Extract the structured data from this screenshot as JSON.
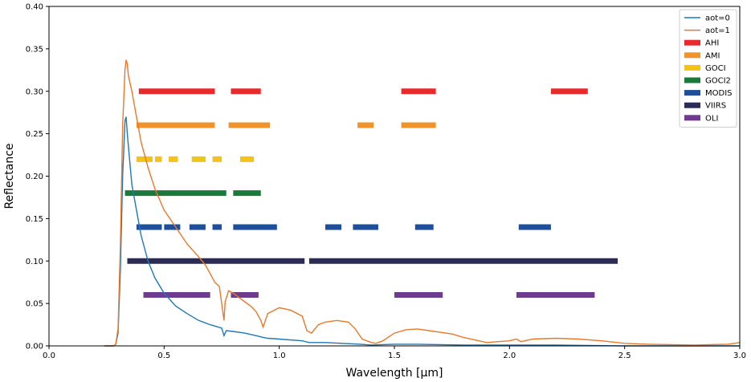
{
  "chart_data": {
    "type": "line",
    "title": "",
    "xlabel": "Wavelength [µm]",
    "ylabel": "Reflectance",
    "xlim": [
      0.0,
      3.0
    ],
    "ylim": [
      0.0,
      0.4
    ],
    "xticks": [
      "0.0",
      "0.5",
      "1.0",
      "1.5",
      "2.0",
      "2.5",
      "3.0"
    ],
    "yticks": [
      "0.00",
      "0.05",
      "0.10",
      "0.15",
      "0.20",
      "0.25",
      "0.30",
      "0.35",
      "0.40"
    ],
    "grid": false,
    "legend_position": "top-right",
    "lines": [
      {
        "name": "aot=0",
        "color": "#1f77b4",
        "points": [
          [
            0.24,
            0.0
          ],
          [
            0.28,
            0.0
          ],
          [
            0.29,
            0.002
          ],
          [
            0.3,
            0.015
          ],
          [
            0.31,
            0.09
          ],
          [
            0.32,
            0.2
          ],
          [
            0.33,
            0.265
          ],
          [
            0.335,
            0.27
          ],
          [
            0.34,
            0.25
          ],
          [
            0.35,
            0.22
          ],
          [
            0.36,
            0.19
          ],
          [
            0.38,
            0.16
          ],
          [
            0.4,
            0.13
          ],
          [
            0.43,
            0.1
          ],
          [
            0.46,
            0.08
          ],
          [
            0.5,
            0.062
          ],
          [
            0.55,
            0.047
          ],
          [
            0.6,
            0.038
          ],
          [
            0.65,
            0.03
          ],
          [
            0.7,
            0.025
          ],
          [
            0.75,
            0.021
          ],
          [
            0.76,
            0.012
          ],
          [
            0.77,
            0.018
          ],
          [
            0.8,
            0.017
          ],
          [
            0.85,
            0.015
          ],
          [
            0.9,
            0.012
          ],
          [
            0.93,
            0.01
          ],
          [
            0.95,
            0.009
          ],
          [
            1.0,
            0.008
          ],
          [
            1.1,
            0.006
          ],
          [
            1.13,
            0.004
          ],
          [
            1.2,
            0.004
          ],
          [
            1.35,
            0.002
          ],
          [
            1.4,
            0.001
          ],
          [
            1.5,
            0.002
          ],
          [
            1.6,
            0.002
          ],
          [
            1.8,
            0.001
          ],
          [
            2.0,
            0.001
          ],
          [
            2.2,
            0.001
          ],
          [
            2.5,
            0.0
          ],
          [
            3.0,
            0.0
          ]
        ]
      },
      {
        "name": "aot=1",
        "color": "#e8792c",
        "points": [
          [
            0.24,
            0.0
          ],
          [
            0.28,
            0.0
          ],
          [
            0.29,
            0.002
          ],
          [
            0.3,
            0.02
          ],
          [
            0.31,
            0.12
          ],
          [
            0.32,
            0.26
          ],
          [
            0.33,
            0.325
          ],
          [
            0.335,
            0.337
          ],
          [
            0.34,
            0.332
          ],
          [
            0.345,
            0.318
          ],
          [
            0.36,
            0.3
          ],
          [
            0.38,
            0.27
          ],
          [
            0.4,
            0.24
          ],
          [
            0.43,
            0.21
          ],
          [
            0.46,
            0.185
          ],
          [
            0.5,
            0.16
          ],
          [
            0.55,
            0.14
          ],
          [
            0.6,
            0.12
          ],
          [
            0.65,
            0.105
          ],
          [
            0.68,
            0.095
          ],
          [
            0.7,
            0.085
          ],
          [
            0.72,
            0.075
          ],
          [
            0.74,
            0.07
          ],
          [
            0.76,
            0.03
          ],
          [
            0.765,
            0.052
          ],
          [
            0.78,
            0.065
          ],
          [
            0.8,
            0.062
          ],
          [
            0.82,
            0.058
          ],
          [
            0.85,
            0.052
          ],
          [
            0.88,
            0.046
          ],
          [
            0.9,
            0.04
          ],
          [
            0.92,
            0.03
          ],
          [
            0.93,
            0.022
          ],
          [
            0.95,
            0.038
          ],
          [
            1.0,
            0.045
          ],
          [
            1.05,
            0.042
          ],
          [
            1.1,
            0.035
          ],
          [
            1.12,
            0.018
          ],
          [
            1.14,
            0.015
          ],
          [
            1.17,
            0.025
          ],
          [
            1.2,
            0.028
          ],
          [
            1.25,
            0.03
          ],
          [
            1.3,
            0.028
          ],
          [
            1.33,
            0.02
          ],
          [
            1.36,
            0.008
          ],
          [
            1.4,
            0.004
          ],
          [
            1.42,
            0.003
          ],
          [
            1.45,
            0.006
          ],
          [
            1.5,
            0.015
          ],
          [
            1.55,
            0.019
          ],
          [
            1.6,
            0.02
          ],
          [
            1.65,
            0.018
          ],
          [
            1.7,
            0.016
          ],
          [
            1.75,
            0.014
          ],
          [
            1.8,
            0.01
          ],
          [
            1.85,
            0.007
          ],
          [
            1.9,
            0.004
          ],
          [
            1.95,
            0.005
          ],
          [
            2.0,
            0.006
          ],
          [
            2.03,
            0.008
          ],
          [
            2.05,
            0.005
          ],
          [
            2.1,
            0.008
          ],
          [
            2.2,
            0.009
          ],
          [
            2.3,
            0.008
          ],
          [
            2.4,
            0.006
          ],
          [
            2.5,
            0.003
          ],
          [
            2.6,
            0.002
          ],
          [
            2.8,
            0.001
          ],
          [
            2.95,
            0.002
          ],
          [
            3.0,
            0.004
          ]
        ]
      }
    ],
    "bands": [
      {
        "name": "AHI",
        "color": "#e82a2a",
        "y": 0.3,
        "segments": [
          [
            0.39,
            0.72
          ],
          [
            0.79,
            0.92
          ],
          [
            1.53,
            1.68
          ],
          [
            2.18,
            2.34
          ]
        ]
      },
      {
        "name": "AMI",
        "color": "#f0932a",
        "y": 0.26,
        "segments": [
          [
            0.38,
            0.72
          ],
          [
            0.78,
            0.96
          ],
          [
            1.34,
            1.41
          ],
          [
            1.53,
            1.68
          ]
        ]
      },
      {
        "name": "GOCI",
        "color": "#f2c318",
        "y": 0.22,
        "segments": [
          [
            0.38,
            0.45
          ],
          [
            0.46,
            0.49
          ],
          [
            0.52,
            0.56
          ],
          [
            0.62,
            0.68
          ],
          [
            0.71,
            0.75
          ],
          [
            0.83,
            0.89
          ]
        ]
      },
      {
        "name": "GOCI2",
        "color": "#1a7a3c",
        "y": 0.18,
        "segments": [
          [
            0.33,
            0.77
          ],
          [
            0.8,
            0.92
          ]
        ]
      },
      {
        "name": "MODIS",
        "color": "#1f4e9a",
        "y": 0.14,
        "segments": [
          [
            0.38,
            0.49
          ],
          [
            0.5,
            0.57
          ],
          [
            0.61,
            0.68
          ],
          [
            0.71,
            0.75
          ],
          [
            0.8,
            0.99
          ],
          [
            1.2,
            1.27
          ],
          [
            1.32,
            1.43
          ],
          [
            1.59,
            1.67
          ],
          [
            2.04,
            2.18
          ]
        ]
      },
      {
        "name": "VIIRS",
        "color": "#2b2b55",
        "y": 0.1,
        "segments": [
          [
            0.34,
            1.11
          ],
          [
            1.13,
            2.47
          ]
        ]
      },
      {
        "name": "OLI",
        "color": "#6e3b8e",
        "y": 0.06,
        "segments": [
          [
            0.41,
            0.7
          ],
          [
            0.79,
            0.91
          ],
          [
            1.5,
            1.71
          ],
          [
            2.03,
            2.37
          ]
        ]
      }
    ]
  }
}
